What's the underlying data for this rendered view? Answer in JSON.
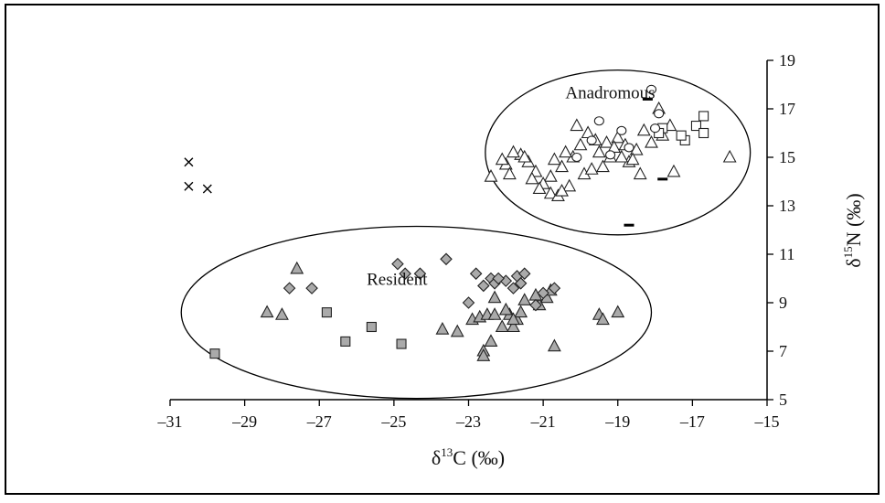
{
  "chart_data": {
    "type": "scatter",
    "xlabel": {
      "base": "δ",
      "sup": "13",
      "rest": "C (‰)"
    },
    "ylabel": {
      "base": "δ",
      "sup": "15",
      "rest": "N (‰)"
    },
    "xlim": [
      -31,
      -15
    ],
    "ylim": [
      5,
      19
    ],
    "x_ticks": [
      -31,
      -29,
      -27,
      -25,
      -23,
      -21,
      -19,
      -17,
      -15
    ],
    "y_ticks": [
      5,
      7,
      9,
      11,
      13,
      15,
      17,
      19
    ],
    "x_tick_labels": [
      "–31",
      "–29",
      "–27",
      "–25",
      "–23",
      "–21",
      "–19",
      "–17",
      "–15"
    ],
    "y_tick_labels": [
      "5",
      "7",
      "9",
      "11",
      "13",
      "15",
      "17",
      "19"
    ],
    "y_axis_side": "right",
    "grid": false,
    "legend": "none",
    "annotations": [
      {
        "text": "Anadromous",
        "x": -18.0,
        "y": 17.7
      },
      {
        "text": "Resident",
        "x": -24.1,
        "y": 10.0
      }
    ],
    "ellipses": [
      {
        "name": "anadromous",
        "cx": -19.0,
        "cy": 15.2,
        "rx": 3.55,
        "ry": 3.4
      },
      {
        "name": "resident",
        "cx": -24.4,
        "cy": 8.6,
        "rx": 6.3,
        "ry": 3.55
      }
    ],
    "series": [
      {
        "marker": "triangle",
        "fill": "#ffffff",
        "points": [
          [
            -20.8,
            14.2
          ],
          [
            -20.5,
            14.6
          ],
          [
            -20.2,
            15.0
          ],
          [
            -20.0,
            15.5
          ],
          [
            -19.8,
            16.0
          ],
          [
            -19.6,
            15.7
          ],
          [
            -19.5,
            15.2
          ],
          [
            -19.3,
            15.6
          ],
          [
            -19.2,
            15.0
          ],
          [
            -19.0,
            15.8
          ],
          [
            -18.8,
            15.5
          ],
          [
            -18.7,
            14.8
          ],
          [
            -18.5,
            15.3
          ],
          [
            -18.3,
            16.1
          ],
          [
            -18.1,
            15.6
          ],
          [
            -17.8,
            15.9
          ],
          [
            -17.6,
            16.3
          ],
          [
            -17.9,
            17.0
          ],
          [
            -18.6,
            14.9
          ],
          [
            -19.9,
            14.3
          ],
          [
            -20.3,
            13.8
          ],
          [
            -21.2,
            14.4
          ],
          [
            -21.4,
            14.8
          ],
          [
            -21.6,
            15.1
          ],
          [
            -21.8,
            15.2
          ],
          [
            -22.0,
            14.7
          ],
          [
            -22.1,
            14.9
          ],
          [
            -21.9,
            14.3
          ],
          [
            -21.3,
            14.1
          ],
          [
            -21.0,
            13.9
          ],
          [
            -21.1,
            13.7
          ],
          [
            -20.8,
            13.5
          ],
          [
            -20.6,
            13.4
          ],
          [
            -20.5,
            13.6
          ],
          [
            -22.4,
            14.2
          ],
          [
            -20.4,
            15.2
          ],
          [
            -20.1,
            16.3
          ],
          [
            -19.4,
            14.6
          ],
          [
            -19.7,
            14.5
          ],
          [
            -19.1,
            15.4
          ],
          [
            -18.9,
            15.0
          ],
          [
            -17.5,
            14.4
          ],
          [
            -16.0,
            15.0
          ],
          [
            -18.4,
            14.3
          ],
          [
            -20.7,
            14.9
          ],
          [
            -21.5,
            15.0
          ]
        ]
      },
      {
        "marker": "square",
        "fill": "#ffffff",
        "points": [
          [
            -16.7,
            16.7
          ],
          [
            -16.9,
            16.3
          ],
          [
            -16.7,
            16.0
          ],
          [
            -17.2,
            15.7
          ],
          [
            -17.3,
            15.9
          ],
          [
            -17.8,
            16.2
          ],
          [
            -17.9,
            16.0
          ]
        ]
      },
      {
        "marker": "circle",
        "fill": "#ffffff",
        "points": [
          [
            -18.1,
            17.8
          ],
          [
            -17.9,
            16.8
          ],
          [
            -18.0,
            16.2
          ],
          [
            -19.5,
            16.5
          ],
          [
            -18.9,
            16.1
          ],
          [
            -19.7,
            15.7
          ],
          [
            -19.2,
            15.1
          ],
          [
            -20.1,
            15.0
          ],
          [
            -18.7,
            15.4
          ]
        ]
      },
      {
        "marker": "dash",
        "fill": "#000000",
        "points": [
          [
            -18.2,
            17.4
          ],
          [
            -17.8,
            14.1
          ],
          [
            -18.7,
            12.2
          ]
        ]
      },
      {
        "marker": "triangle",
        "fill": "#aaaaaa",
        "points": [
          [
            -27.6,
            10.4
          ],
          [
            -28.4,
            8.6
          ],
          [
            -28.0,
            8.5
          ],
          [
            -23.7,
            7.9
          ],
          [
            -23.3,
            7.8
          ],
          [
            -22.9,
            8.3
          ],
          [
            -22.7,
            8.4
          ],
          [
            -22.5,
            8.5
          ],
          [
            -22.3,
            8.5
          ],
          [
            -22.1,
            8.0
          ],
          [
            -21.9,
            8.5
          ],
          [
            -21.7,
            8.3
          ],
          [
            -21.8,
            8.0
          ],
          [
            -22.4,
            7.4
          ],
          [
            -22.6,
            7.0
          ],
          [
            -22.6,
            6.8
          ],
          [
            -22.3,
            9.2
          ],
          [
            -21.5,
            9.1
          ],
          [
            -21.1,
            8.9
          ],
          [
            -20.9,
            9.2
          ],
          [
            -21.2,
            9.3
          ],
          [
            -20.8,
            9.5
          ],
          [
            -20.7,
            7.2
          ],
          [
            -19.5,
            8.5
          ],
          [
            -19.4,
            8.3
          ],
          [
            -19.0,
            8.6
          ],
          [
            -21.6,
            8.6
          ],
          [
            -21.8,
            8.3
          ],
          [
            -22.0,
            8.7
          ]
        ]
      },
      {
        "marker": "diamond",
        "fill": "#aaaaaa",
        "points": [
          [
            -24.9,
            10.6
          ],
          [
            -24.7,
            10.2
          ],
          [
            -24.3,
            10.2
          ],
          [
            -23.6,
            10.8
          ],
          [
            -22.8,
            10.2
          ],
          [
            -22.4,
            10.0
          ],
          [
            -22.0,
            9.9
          ],
          [
            -21.7,
            10.1
          ],
          [
            -21.5,
            10.2
          ],
          [
            -22.3,
            9.8
          ],
          [
            -21.8,
            9.6
          ],
          [
            -21.0,
            9.4
          ],
          [
            -20.7,
            9.6
          ],
          [
            -27.8,
            9.6
          ],
          [
            -27.2,
            9.6
          ],
          [
            -23.0,
            9.0
          ],
          [
            -21.2,
            8.9
          ],
          [
            -22.2,
            10.0
          ],
          [
            -21.6,
            9.8
          ],
          [
            -22.6,
            9.7
          ]
        ]
      },
      {
        "marker": "square",
        "fill": "#aaaaaa",
        "points": [
          [
            -29.8,
            6.9
          ],
          [
            -26.8,
            8.6
          ],
          [
            -25.6,
            8.0
          ],
          [
            -26.3,
            7.4
          ],
          [
            -24.8,
            7.3
          ]
        ]
      },
      {
        "marker": "cross",
        "fill": "#000000",
        "points": [
          [
            -30.5,
            14.8
          ],
          [
            -30.5,
            13.8
          ],
          [
            -30.0,
            13.7
          ]
        ]
      }
    ]
  }
}
